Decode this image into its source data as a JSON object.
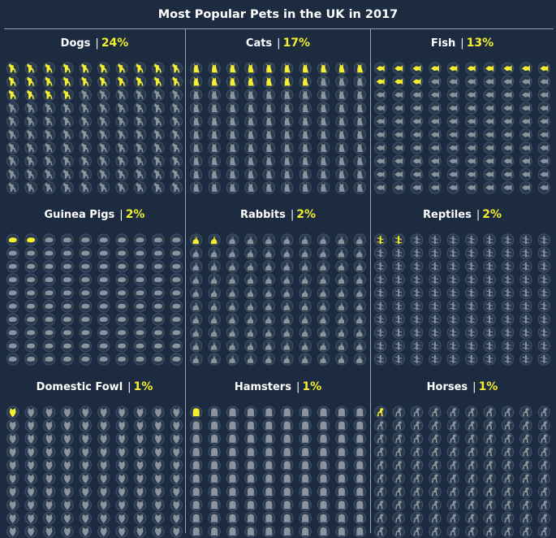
{
  "title": "Most Popular Pets in the UK in 2017",
  "colors": {
    "background": "#1c2b3f",
    "highlight": "#f3ee30",
    "inactive_icon": "#8b939d",
    "circle_fill": "#2a3a4e",
    "circle_stroke": "#41526a",
    "divider": "#9aa6b4"
  },
  "chart_data": {
    "type": "pictogram",
    "title": "Most Popular Pets in the UK in 2017",
    "units_per_panel": 100,
    "grid": "10x10",
    "panels": [
      {
        "name": "Dogs",
        "value": 24,
        "label": "24%",
        "icon": "dog-icon"
      },
      {
        "name": "Cats",
        "value": 17,
        "label": "17%",
        "icon": "cat-icon"
      },
      {
        "name": "Fish",
        "value": 13,
        "label": "13%",
        "icon": "fish-icon"
      },
      {
        "name": "Guinea Pigs",
        "value": 2,
        "label": "2%",
        "icon": "guinea-pig-icon"
      },
      {
        "name": "Rabbits",
        "value": 2,
        "label": "2%",
        "icon": "rabbit-icon"
      },
      {
        "name": "Reptiles",
        "value": 2,
        "label": "2%",
        "icon": "reptile-icon"
      },
      {
        "name": "Domestic Fowl",
        "value": 1,
        "label": "1%",
        "icon": "chicken-icon"
      },
      {
        "name": "Hamsters",
        "value": 1,
        "label": "1%",
        "icon": "hamster-icon"
      },
      {
        "name": "Horses",
        "value": 1,
        "label": "1%",
        "icon": "horse-icon"
      }
    ]
  }
}
